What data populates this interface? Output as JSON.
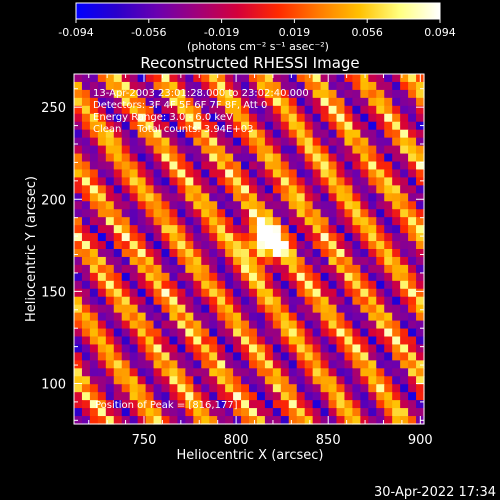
{
  "chart_data": {
    "type": "heatmap",
    "title": "Reconstructed RHESSI Image",
    "xlabel": "Heliocentric X (arcsec)",
    "ylabel": "Heliocentric Y (arcsec)",
    "xlim": [
      712,
      902
    ],
    "ylim": [
      78,
      268
    ],
    "xticks": [
      750,
      800,
      850,
      900
    ],
    "yticks": [
      100,
      150,
      200,
      250
    ],
    "colorbar": {
      "range": [
        -0.094,
        0.094
      ],
      "ticks": [
        "-0.094",
        "-0.056",
        "-0.019",
        "0.019",
        "0.056",
        "0.094"
      ],
      "unit_label": "(photons cm⁻² s⁻¹ asec⁻²)",
      "colormap": [
        "#0000ff",
        "#2a00cc",
        "#6a00b0",
        "#a0007a",
        "#d4003a",
        "#ff2a00",
        "#ff7a00",
        "#ffc000",
        "#ffff80",
        "#ffffff"
      ]
    },
    "annotations": {
      "time": "13-Apr-2003 23:01:28.000 to 23:02:40.000",
      "detectors": "Detectors: 3F 4F 5F 6F 7F 8F, Att 0",
      "energy": "Energy Range: 3.0 - 6.0 keV",
      "clean": "Clean     Total counts: 3.94E+03",
      "peak": "Position of Peak = [816,177]"
    },
    "peak": {
      "x": 816,
      "y": 177,
      "value": 0.094
    },
    "stripes": {
      "angle_deg": -35,
      "period_arcsec": 22
    },
    "timestamp": "30-Apr-2022 17:34"
  }
}
